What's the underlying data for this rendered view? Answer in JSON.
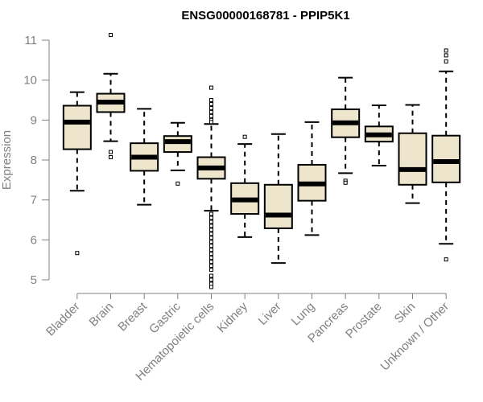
{
  "chart_data": {
    "type": "box",
    "title": "ENSG00000168781 - PPIP5K1",
    "xlabel": "",
    "ylabel": "Expression",
    "ylim": [
      4.8,
      11.1
    ],
    "yticks": [
      5,
      6,
      7,
      8,
      9,
      10,
      11
    ],
    "box_fill": "#ede5cc",
    "categories": [
      "Bladder",
      "Brain",
      "Breast",
      "Gastric",
      "Hematopoietic cells",
      "Kidney",
      "Liver",
      "Lung",
      "Pancreas",
      "Prostate",
      "Skin",
      "Unknown / Other"
    ],
    "series": [
      {
        "name": "Bladder",
        "whisker_low": 7.23,
        "q1": 8.27,
        "median": 8.95,
        "q3": 9.36,
        "whisker_high": 9.7,
        "outliers": [
          5.67
        ]
      },
      {
        "name": "Brain",
        "whisker_low": 8.47,
        "q1": 9.2,
        "median": 9.45,
        "q3": 9.66,
        "whisker_high": 10.16,
        "outliers": [
          11.13,
          8.2,
          8.07
        ]
      },
      {
        "name": "Breast",
        "whisker_low": 6.88,
        "q1": 7.73,
        "median": 8.07,
        "q3": 8.42,
        "whisker_high": 9.28,
        "outliers": []
      },
      {
        "name": "Gastric",
        "whisker_low": 7.74,
        "q1": 8.2,
        "median": 8.46,
        "q3": 8.6,
        "whisker_high": 8.93,
        "outliers": [
          7.41
        ]
      },
      {
        "name": "Hematopoietic cells",
        "whisker_low": 6.73,
        "q1": 7.53,
        "median": 7.8,
        "q3": 8.07,
        "whisker_high": 8.9,
        "outliers": [
          9.81,
          9.5,
          9.4,
          9.3,
          9.2,
          9.1,
          9.0,
          8.95,
          6.65,
          6.55,
          6.45,
          6.35,
          6.25,
          6.15,
          6.05,
          5.95,
          5.85,
          5.75,
          5.65,
          5.55,
          5.45,
          5.35,
          5.25,
          5.1,
          5.0,
          4.9,
          4.82
        ]
      },
      {
        "name": "Kidney",
        "whisker_low": 6.07,
        "q1": 6.65,
        "median": 7.0,
        "q3": 7.42,
        "whisker_high": 8.4,
        "outliers": [
          8.58
        ]
      },
      {
        "name": "Liver",
        "whisker_low": 5.42,
        "q1": 6.29,
        "median": 6.62,
        "q3": 7.38,
        "whisker_high": 8.65,
        "outliers": []
      },
      {
        "name": "Lung",
        "whisker_low": 6.12,
        "q1": 6.98,
        "median": 7.4,
        "q3": 7.88,
        "whisker_high": 8.95,
        "outliers": []
      },
      {
        "name": "Pancreas",
        "whisker_low": 7.67,
        "q1": 8.57,
        "median": 8.93,
        "q3": 9.27,
        "whisker_high": 10.06,
        "outliers": [
          7.48,
          7.43
        ]
      },
      {
        "name": "Prostate",
        "whisker_low": 7.86,
        "q1": 8.46,
        "median": 8.63,
        "q3": 8.84,
        "whisker_high": 9.37,
        "outliers": []
      },
      {
        "name": "Skin",
        "whisker_low": 6.92,
        "q1": 7.38,
        "median": 7.76,
        "q3": 8.67,
        "whisker_high": 9.38,
        "outliers": []
      },
      {
        "name": "Unknown / Other",
        "whisker_low": 5.9,
        "q1": 7.44,
        "median": 7.96,
        "q3": 8.61,
        "whisker_high": 10.22,
        "outliers": [
          10.74,
          10.62,
          10.47,
          5.51
        ]
      }
    ]
  }
}
